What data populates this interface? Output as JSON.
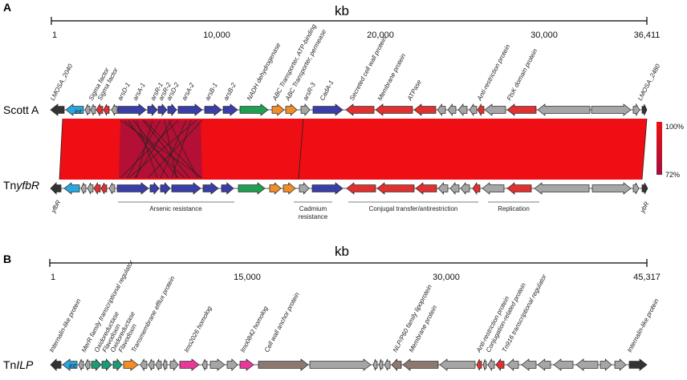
{
  "colors": {
    "ars": "#3a3ea8",
    "red": "#e03030",
    "grey": "#a6a6a6",
    "green": "#1ea050",
    "orange": "#f28c28",
    "blue": "#2aa6e0",
    "teal": "#1e9a78",
    "magenta": "#e8389a",
    "brown": "#8c7a70",
    "black": "#333333",
    "band": "#ee0e14",
    "crossing": "#a01040"
  },
  "panelA": {
    "letter": "A",
    "axis": {
      "unit": "kb",
      "ticks": [
        "1",
        "10,000",
        "20,000",
        "30,000",
        "36,411"
      ]
    },
    "tracks": {
      "top": "Scott A",
      "bottom_prefix": "Tn",
      "bottom_italic": "yfbR"
    },
    "side_labels": {
      "bottom_left": "yfbR",
      "bottom_right": "ybR"
    },
    "gene_labels": [
      "LMOSA_2040",
      "int",
      "Sigma factor",
      "Sigma factor",
      "arsD-1",
      "arsA-1",
      "arsR-1",
      "arsR-2",
      "arsD-2",
      "arsA-2",
      "arsB-1",
      "arsB-2",
      "NADH dehydrogenase",
      "ABC Transporter, ATP-binding",
      "ABC Transporter, permease",
      "arsR-3",
      "CadA-1",
      "Secreted cell wall protein",
      "Membrane protein",
      "ATPase",
      "Anti-restriction protein",
      "FtsK domain protein",
      "LMOSA_2480"
    ],
    "regions": [
      "Arsenic resistance",
      "Cadmium",
      "resistance",
      "Conjugal transfer/antirestriction",
      "Replication"
    ],
    "legend": {
      "max": "100%",
      "min": "72%"
    }
  },
  "panelB": {
    "letter": "B",
    "axis": {
      "unit": "kb",
      "ticks": [
        "1",
        "15,000",
        "30,000",
        "45,317"
      ]
    },
    "track": {
      "prefix": "Tn",
      "italic": "ILP"
    },
    "gene_labels": [
      "Internalin-like protein",
      "int",
      "MerR family transcriptional regulator",
      "Oxidoreductase",
      "Flavodoxin",
      "Oxidoreductase",
      "Flavodoxin",
      "Transmembrane efflux protein",
      "lmo2026 homolog",
      "lmo0842 homolog",
      "Cell wall anchor protein",
      "NLP/P60 family lipoprotein",
      "Membrane protein",
      "Anti-restriction protein",
      "Conjugation-related protein",
      "Tn916 transcriptional regulator",
      "Internalin-like protein"
    ]
  }
}
